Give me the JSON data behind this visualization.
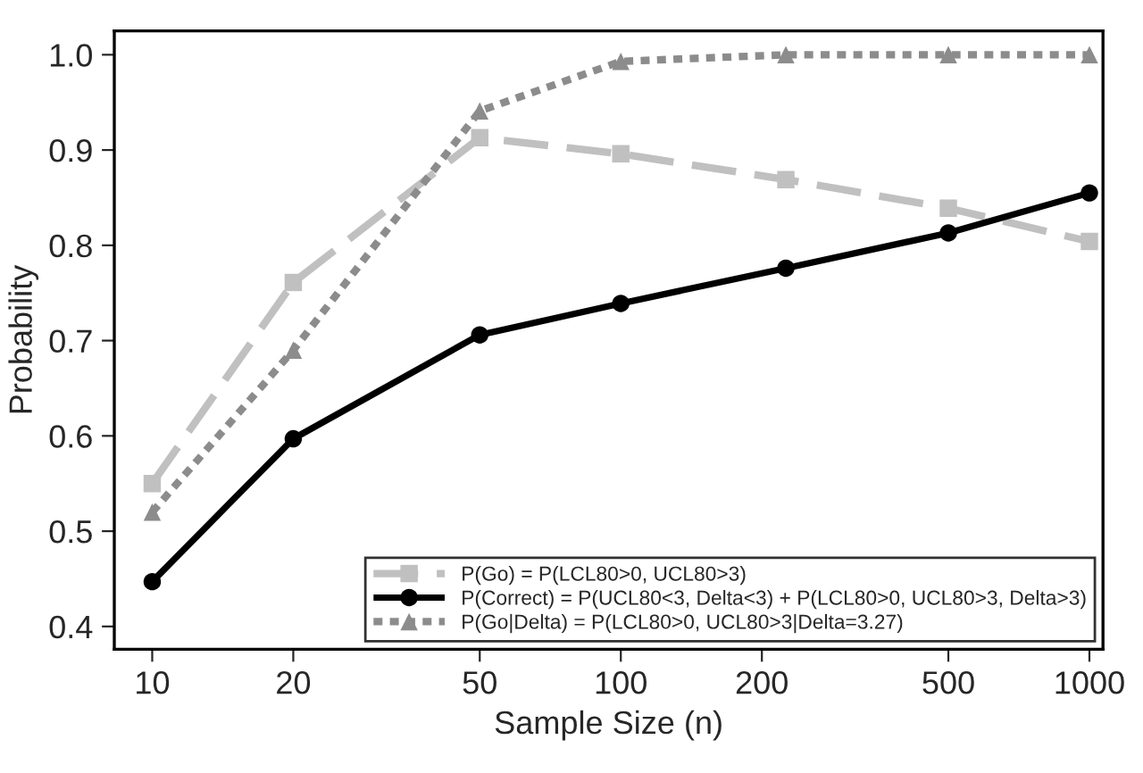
{
  "chart_data": {
    "type": "line",
    "xlabel": "Sample Size (n)",
    "ylabel": "Probability",
    "log": "x",
    "xlim": [
      8.3,
      1069
    ],
    "ylim": [
      0.376,
      1.025
    ],
    "xticks": [
      10,
      20,
      50,
      100,
      200,
      500,
      1000
    ],
    "yticks": [
      {
        "value": 0.4,
        "label": "0.4"
      },
      {
        "value": 0.5,
        "label": "0.5"
      },
      {
        "value": 0.6,
        "label": "0.6"
      },
      {
        "value": 0.7,
        "label": "0.7"
      },
      {
        "value": 0.8,
        "label": "0.8"
      },
      {
        "value": 0.9,
        "label": "0.9"
      },
      {
        "value": 1.0,
        "label": "1.0"
      }
    ],
    "x": [
      10,
      20,
      50,
      100,
      225,
      500,
      1000
    ],
    "grid": false,
    "legend": "bottom right",
    "series": [
      {
        "name": "P(Go) = P(LCL80>0, UCL80>3)",
        "color": "#c0c0c0",
        "marker": "square",
        "line_style": "dashed",
        "values": [
          0.55,
          0.761,
          0.913,
          0.896,
          0.869,
          0.839,
          0.804
        ]
      },
      {
        "name": "P(Correct) = P(UCL80<3, Delta<3) + P(LCL80>0, UCL80>3, Delta>3)",
        "color": "#000000",
        "marker": "circle",
        "line_style": "solid",
        "values": [
          0.447,
          0.597,
          0.706,
          0.739,
          0.776,
          0.813,
          0.855
        ]
      },
      {
        "name": "P(Go|Delta) = P(LCL80>0, UCL80>3|Delta=3.27)",
        "color": "#8c8c8c",
        "marker": "triangle",
        "line_style": "dotted",
        "values": [
          0.52,
          0.69,
          0.941,
          0.993,
          1.0,
          1.0,
          1.0
        ]
      }
    ]
  }
}
